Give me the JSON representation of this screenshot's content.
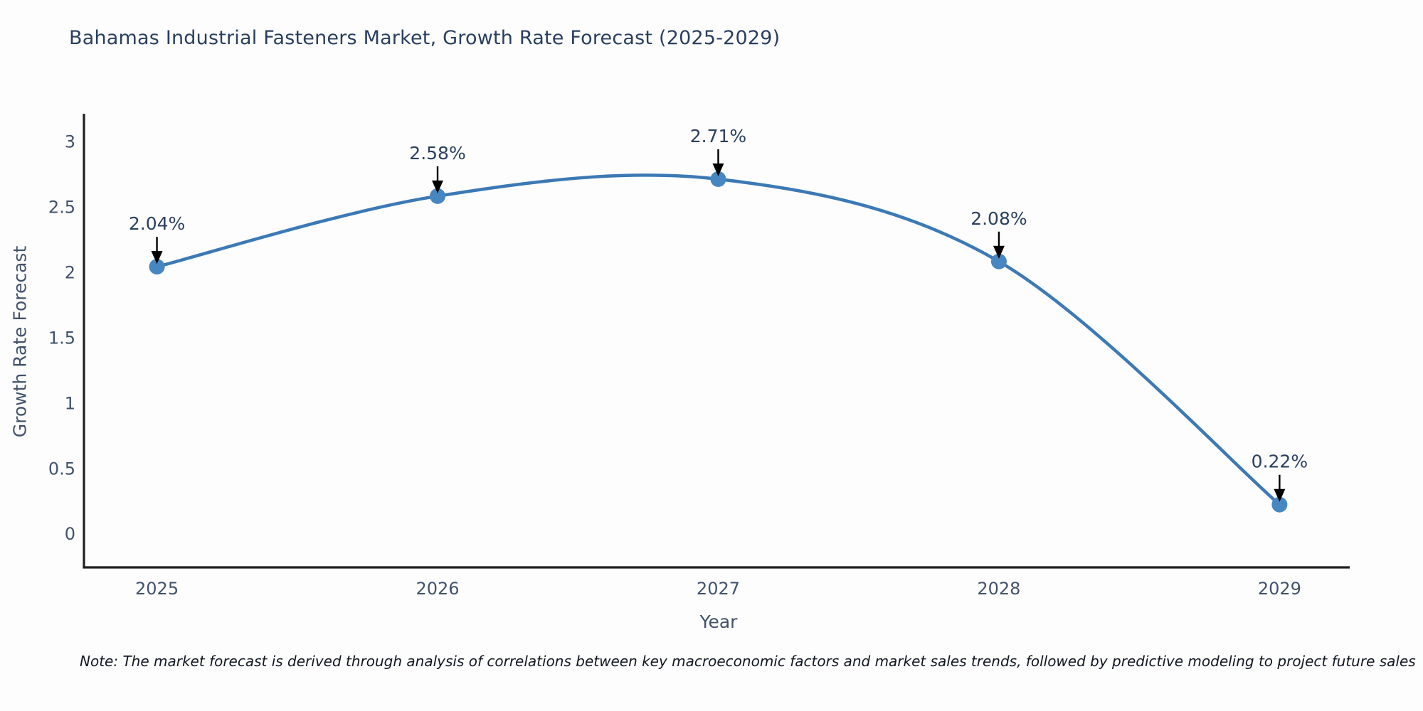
{
  "title": "Bahamas Industrial Fasteners Market, Growth Rate Forecast (2025-2029)",
  "note": "Note: The market forecast is derived through analysis of correlations between key macroeconomic factors and market sales trends, followed by predictive modeling to project future sales",
  "chart_data": {
    "type": "line",
    "line_shape": "spline",
    "title": "Bahamas Industrial Fasteners Market, Growth Rate Forecast (2025-2029)",
    "xlabel": "Year",
    "ylabel": "Growth Rate Forecast",
    "x": [
      2025,
      2026,
      2027,
      2028,
      2029
    ],
    "y": [
      2.04,
      2.58,
      2.71,
      2.08,
      0.22
    ],
    "point_labels": [
      "2.04%",
      "2.58%",
      "2.71%",
      "2.08%",
      "0.22%"
    ],
    "xticks": [
      2025,
      2026,
      2027,
      2028,
      2029
    ],
    "yticks": [
      0,
      0.5,
      1,
      1.5,
      2,
      2.5,
      3
    ],
    "xlim": [
      2024.74,
      2029.25
    ],
    "ylim": [
      -0.26,
      3.21
    ],
    "grid": false,
    "legend": "none",
    "colors": {
      "background": "#fdfdfd",
      "line": "#3c79b5",
      "marker": "#4687c1",
      "axis_line": "#1f1f1f",
      "tick_label": "#42526b",
      "axis_title": "#42526b",
      "chart_title": "#2a3f5f",
      "annotation_text": "#2a3f5f",
      "annotation_arrow": "#000000",
      "note_text": "#111722"
    }
  }
}
